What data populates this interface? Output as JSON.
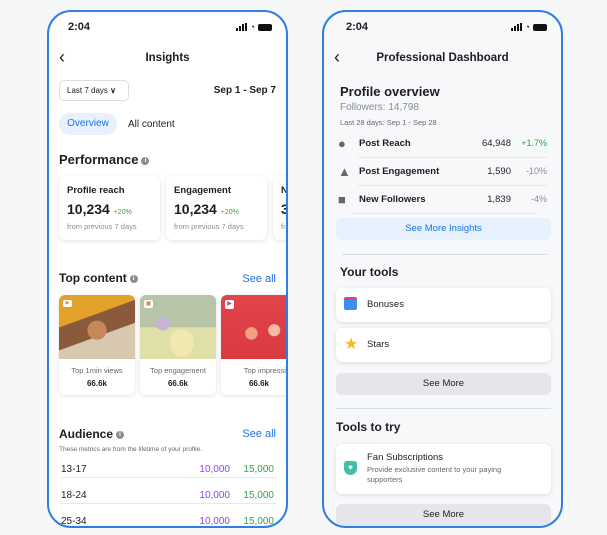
{
  "insights": {
    "status_time": "2:04",
    "title": "Insights",
    "range_select": "Last 7 days",
    "date_range": "Sep 1 - Sep 7",
    "tabs": [
      {
        "label": "Overview",
        "active": true
      },
      {
        "label": "All content",
        "active": false
      }
    ],
    "performance": {
      "title": "Performance",
      "cards": [
        {
          "label": "Profile reach",
          "value": "10,234",
          "change": "+20%",
          "note": "from previous 7 days"
        },
        {
          "label": "Engagement",
          "value": "10,234",
          "change": "+20%",
          "note": "from previous 7 days"
        },
        {
          "label": "N",
          "value": "3",
          "change": "",
          "note": "fr"
        }
      ]
    },
    "top_content": {
      "title": "Top content",
      "see_all": "See all",
      "items": [
        {
          "label": "Top 1min views",
          "value": "66.6k",
          "icon": "video-icon"
        },
        {
          "label": "Top engagement",
          "value": "66.6k",
          "icon": "photo-icon"
        },
        {
          "label": "Top impression",
          "value": "66.6k",
          "icon": "reels-icon"
        }
      ]
    },
    "audience": {
      "title": "Audience",
      "see_all": "See all",
      "subtitle": "These metrics are from the lifetime of your profile.",
      "rows": [
        {
          "age": "13-17",
          "a": "10,000",
          "b": "15,000"
        },
        {
          "age": "18-24",
          "a": "10,000",
          "b": "15,000"
        },
        {
          "age": "25-34",
          "a": "10,000",
          "b": "15,000"
        }
      ]
    }
  },
  "dashboard": {
    "status_time": "2:04",
    "title": "Professional Dashboard",
    "overview": {
      "title": "Profile overview",
      "followers": "Followers: 14,798",
      "period": "Last 28 days: Sep 1 - Sep 28",
      "rows": [
        {
          "icon": "globe-icon",
          "label": "Post Reach",
          "value": "64,948",
          "change": "+1.7%",
          "positive": true
        },
        {
          "icon": "people-icon",
          "label": "Post Engagement",
          "value": "1,590",
          "change": "-10%",
          "positive": false
        },
        {
          "icon": "calendar-check-icon",
          "label": "New Followers",
          "value": "1,839",
          "change": "-4%",
          "positive": false
        }
      ],
      "button": "See More Insights"
    },
    "your_tools": {
      "title": "Your tools",
      "items": [
        {
          "label": "Bonuses",
          "icon": "gift-icon"
        },
        {
          "label": "Stars",
          "icon": "star-icon"
        }
      ],
      "button": "See More"
    },
    "tools_to_try": {
      "title": "Tools to try",
      "items": [
        {
          "label": "Fan Subscriptions",
          "desc": "Provide exclusive content to your paying supporters",
          "icon": "heart-shield-icon"
        }
      ],
      "button": "See More"
    }
  },
  "colors": {
    "accent": "#1b74e4",
    "border": "#2f7fe0",
    "positive": "#31a24c",
    "purple": "#8b45e6"
  }
}
